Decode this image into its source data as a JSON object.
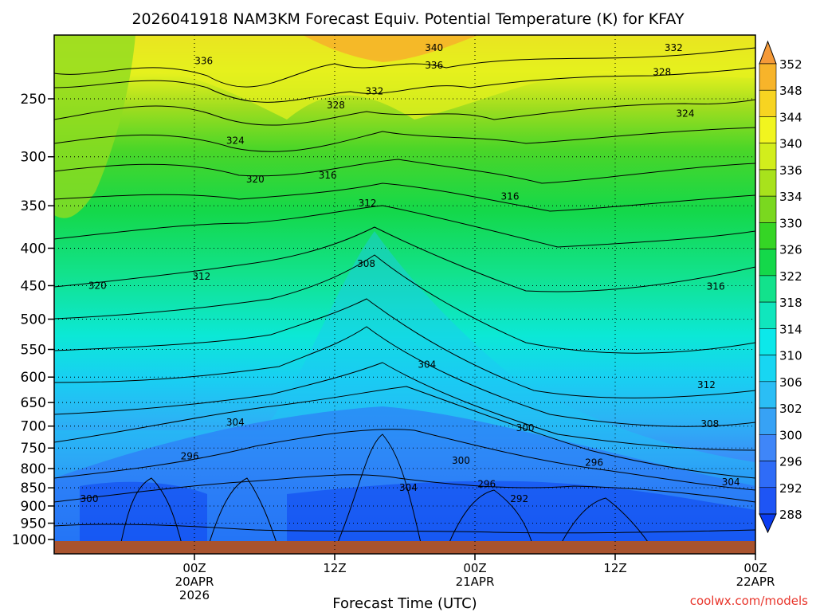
{
  "chart_data": {
    "type": "heatmap",
    "title": "2026041918 NAM3KM Forecast Equiv. Potential Temperature (K) for KFAY",
    "xlabel": "Forecast Time (UTC)",
    "ylabel": "",
    "x_range_hours": [
      -6,
      54
    ],
    "y_scale": "log",
    "y_range_hPa": [
      1000,
      200
    ],
    "y_ticks": [
      250,
      300,
      350,
      400,
      450,
      500,
      550,
      600,
      650,
      700,
      750,
      800,
      850,
      900,
      950,
      1000
    ],
    "x_ticks": [
      {
        "hour": 6,
        "lines": [
          "00Z",
          "20APR",
          "2026"
        ]
      },
      {
        "hour": 18,
        "lines": [
          "12Z"
        ]
      },
      {
        "hour": 30,
        "lines": [
          "00Z",
          "21APR"
        ]
      },
      {
        "hour": 42,
        "lines": [
          "12Z"
        ]
      },
      {
        "hour": 54,
        "lines": [
          "00Z",
          "22APR"
        ]
      }
    ],
    "colorbar": {
      "levels": [
        288,
        292,
        296,
        300,
        302,
        306,
        310,
        314,
        318,
        322,
        326,
        330,
        334,
        336,
        340,
        344,
        348,
        352
      ],
      "colors": [
        "#0a3cf0",
        "#1e55f5",
        "#2f6cf7",
        "#3f86f8",
        "#37a2f5",
        "#2bbef5",
        "#18d6f2",
        "#0ce8ea",
        "#10e6bd",
        "#12e28c",
        "#14d84a",
        "#35d525",
        "#7ad81f",
        "#a8e21c",
        "#d2ee1c",
        "#f1f51f",
        "#f7d421",
        "#f7b42a",
        "#f59a38"
      ]
    },
    "contour_labels": [
      {
        "value": "340",
        "hour": 26.5,
        "p": 213
      },
      {
        "value": "336",
        "hour": 26.5,
        "p": 225
      },
      {
        "value": "332",
        "hour": 21.4,
        "p": 244
      },
      {
        "value": "328",
        "hour": 18.1,
        "p": 255
      },
      {
        "value": "332",
        "hour": 47.0,
        "p": 213
      },
      {
        "value": "328",
        "hour": 46.0,
        "p": 230
      },
      {
        "value": "324",
        "hour": 48.0,
        "p": 262
      },
      {
        "value": "336",
        "hour": 6.8,
        "p": 222
      },
      {
        "value": "324",
        "hour": 9.5,
        "p": 285
      },
      {
        "value": "320",
        "hour": 11.2,
        "p": 322
      },
      {
        "value": "316",
        "hour": 17.4,
        "p": 318
      },
      {
        "value": "312",
        "hour": 20.8,
        "p": 347
      },
      {
        "value": "316",
        "hour": 33.0,
        "p": 340
      },
      {
        "value": "320",
        "hour": -2.3,
        "p": 450
      },
      {
        "value": "312",
        "hour": 6.6,
        "p": 437
      },
      {
        "value": "308",
        "hour": 20.7,
        "p": 420
      },
      {
        "value": "316",
        "hour": 50.6,
        "p": 451
      },
      {
        "value": "304",
        "hour": 25.9,
        "p": 577
      },
      {
        "value": "312",
        "hour": 49.8,
        "p": 615
      },
      {
        "value": "304",
        "hour": 9.5,
        "p": 692
      },
      {
        "value": "300",
        "hour": 34.3,
        "p": 704
      },
      {
        "value": "308",
        "hour": 50.1,
        "p": 695
      },
      {
        "value": "296",
        "hour": 5.6,
        "p": 770
      },
      {
        "value": "300",
        "hour": 28.8,
        "p": 780
      },
      {
        "value": "296",
        "hour": 40.2,
        "p": 785
      },
      {
        "value": "304",
        "hour": 51.9,
        "p": 835
      },
      {
        "value": "304",
        "hour": 24.3,
        "p": 850
      },
      {
        "value": "296",
        "hour": 31.0,
        "p": 840
      },
      {
        "value": "292",
        "hour": 33.8,
        "p": 880
      },
      {
        "value": "300",
        "hour": -3.0,
        "p": 880
      }
    ],
    "credit": "coolwx.com/models"
  }
}
